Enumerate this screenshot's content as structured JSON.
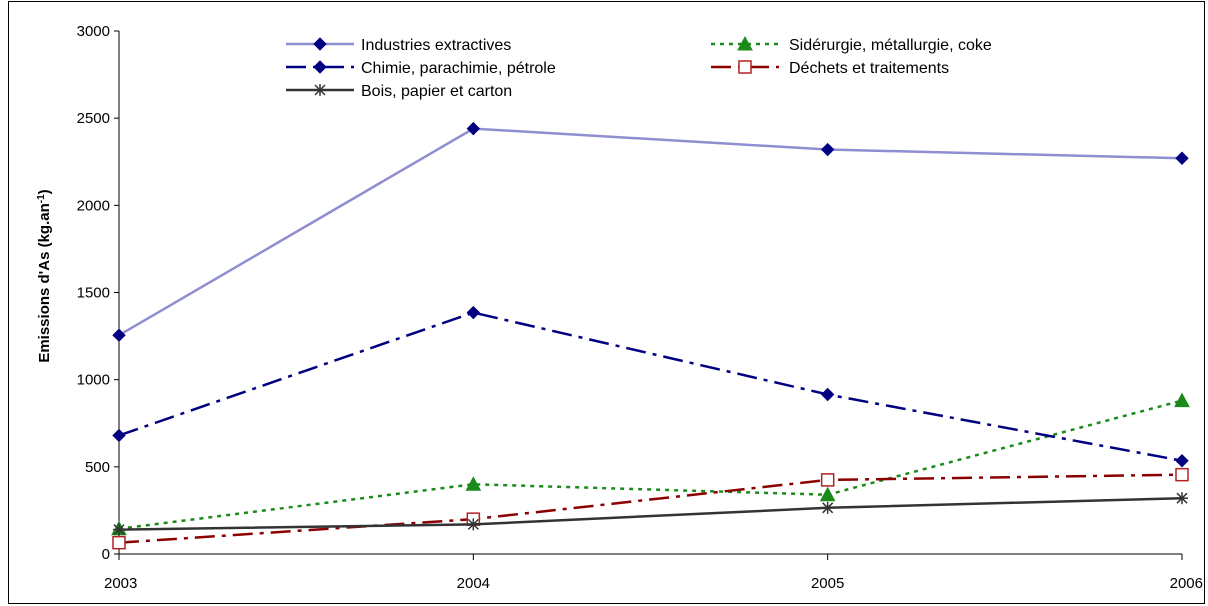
{
  "chart_data": {
    "type": "line",
    "title": "",
    "xlabel": "",
    "ylabel": "Emissions d'As (kg.an",
    "ylabel_sup": "-1",
    "ylabel_tail": ")",
    "x": [
      "2003",
      "2004",
      "2005",
      "2006"
    ],
    "ylim": [
      0,
      3000
    ],
    "yticks": [
      "0",
      "500",
      "1000",
      "1500",
      "2000",
      "2500",
      "3000"
    ],
    "grid": false,
    "legend_position": "top",
    "series": [
      {
        "name": "Industries extractives",
        "values": [
          1255,
          2440,
          2320,
          2270
        ],
        "color": "#8E8ED0",
        "dash": "solid",
        "marker": "diamond-filled"
      },
      {
        "name": "Sidérurgie, métallurgie, coke",
        "values": [
          145,
          400,
          340,
          880
        ],
        "color": "#1A8A1A",
        "dash": "dot",
        "marker": "triangle-filled"
      },
      {
        "name": "Chimie, parachimie, pétrole",
        "values": [
          680,
          1385,
          915,
          535
        ],
        "color": "#000080",
        "dash": "dashdot",
        "marker": "diamond-filled"
      },
      {
        "name": "Déchets et traitements",
        "values": [
          65,
          200,
          425,
          455
        ],
        "color": "#8B0000",
        "dash": "dashdot",
        "marker": "square-open"
      },
      {
        "name": "Bois, papier et carton",
        "values": [
          140,
          170,
          265,
          320
        ],
        "color": "#333333",
        "dash": "solid",
        "marker": "star"
      }
    ]
  }
}
